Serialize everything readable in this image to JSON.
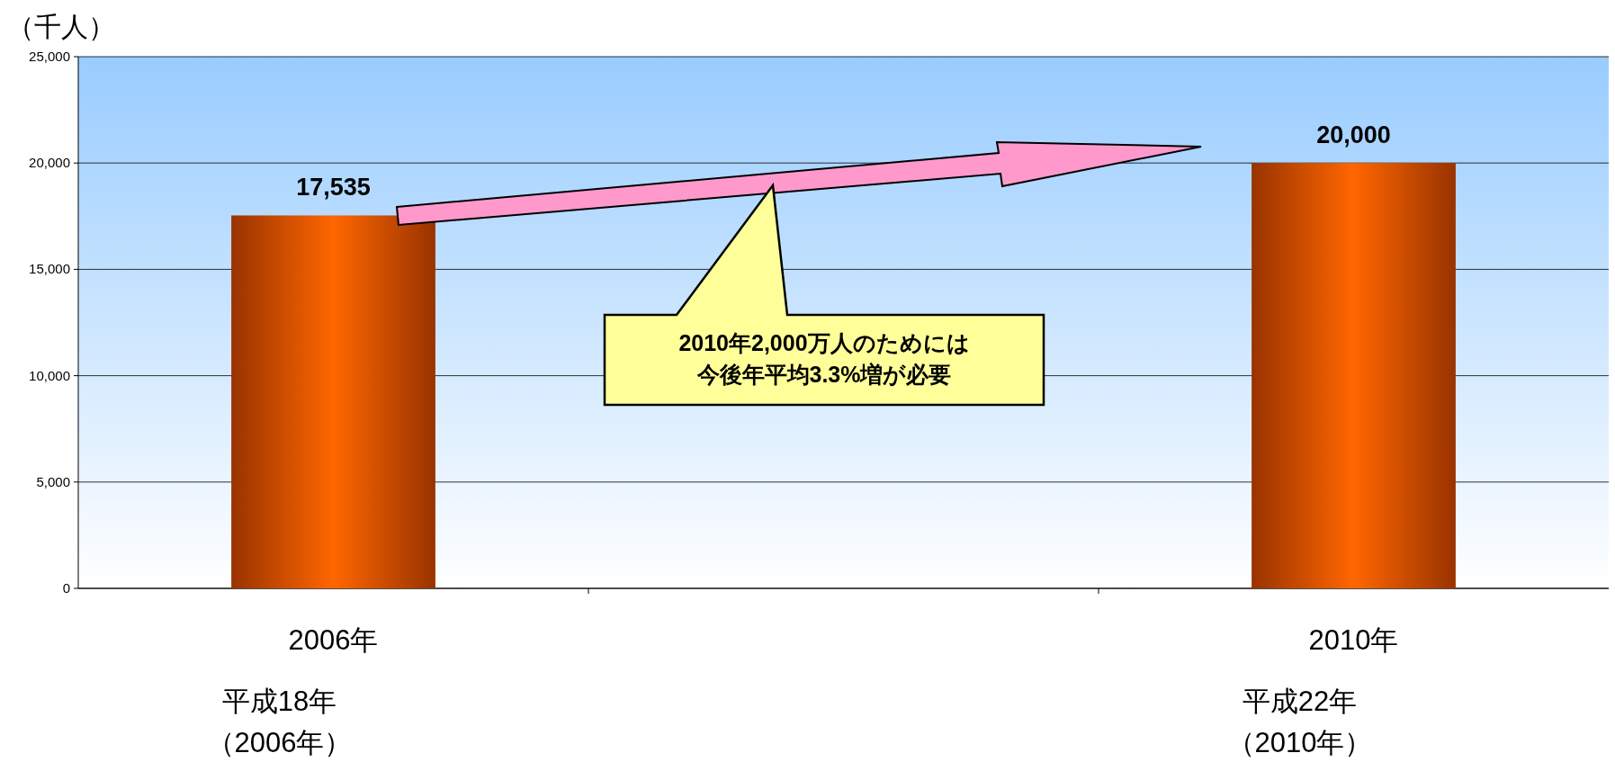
{
  "chart_data": {
    "type": "bar",
    "ylabel": "（千人）",
    "categories": [
      "2006年",
      null,
      "2010年"
    ],
    "values": [
      17535,
      null,
      20000
    ],
    "color": "#ff6600",
    "ylim": [
      0,
      25000
    ],
    "yticks": [
      {
        "value": 0,
        "label": "0"
      },
      {
        "value": 5000,
        "label": "5,000"
      },
      {
        "value": 10000,
        "label": "10,000"
      },
      {
        "value": 15000,
        "label": "15,000"
      },
      {
        "value": 20000,
        "label": "20,000"
      },
      {
        "value": 25000,
        "label": "25,000"
      }
    ],
    "value_labels": [
      "17,535",
      null,
      "20,000"
    ],
    "grid": "y",
    "annotations": [
      "平成18年",
      "（2006年）",
      "平成22年",
      "（2010年）",
      "2010年2,000万人のためには",
      "今後年平均3.3%増が必要"
    ]
  }
}
